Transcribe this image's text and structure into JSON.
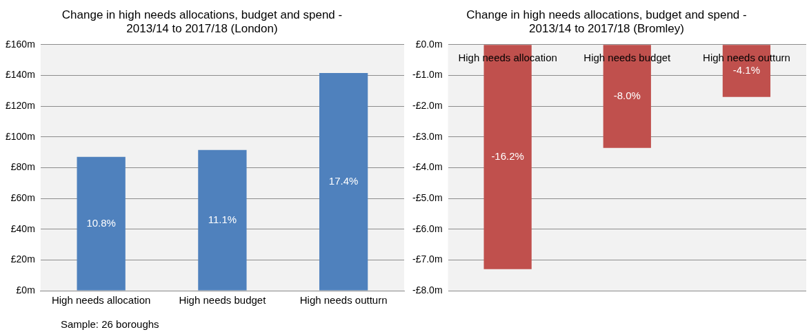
{
  "chart_data": [
    {
      "type": "bar",
      "title": "Change in high needs allocations, budget and spend - 2013/14 to 2017/18 (London)",
      "categories": [
        "High needs allocation",
        "High needs budget",
        "High needs outturn"
      ],
      "values": [
        87,
        91.5,
        141.5
      ],
      "color": "#4f81bd",
      "ylim": [
        0,
        160
      ],
      "yticks": [
        {
          "value": 0,
          "label": "£0m"
        },
        {
          "value": 20,
          "label": "£20m"
        },
        {
          "value": 40,
          "label": "£40m"
        },
        {
          "value": 60,
          "label": "£60m"
        },
        {
          "value": 80,
          "label": "£80m"
        },
        {
          "value": 100,
          "label": "£100m"
        },
        {
          "value": 120,
          "label": "£120m"
        },
        {
          "value": 140,
          "label": "£140m"
        },
        {
          "value": 160,
          "label": "£160m"
        }
      ],
      "grid": "y",
      "legend": false,
      "annotations": [
        "10.8%",
        "11.1%",
        "17.4%",
        "Sample: 26 boroughs"
      ]
    },
    {
      "type": "bar",
      "title": "Change in high needs allocations, budget and spend - 2013/14 to 2017/18 (Bromley)",
      "categories": [
        "High needs allocation",
        "High needs budget",
        "High needs outturn"
      ],
      "values": [
        -7.3,
        -3.36,
        -1.7
      ],
      "color": "#c0504d",
      "ylim": [
        -8,
        0
      ],
      "yticks": [
        {
          "value": 0,
          "label": "£0.0m"
        },
        {
          "value": -1,
          "label": "-£1.0m"
        },
        {
          "value": -2,
          "label": "-£2.0m"
        },
        {
          "value": -3,
          "label": "-£3.0m"
        },
        {
          "value": -4,
          "label": "-£4.0m"
        },
        {
          "value": -5,
          "label": "-£5.0m"
        },
        {
          "value": -6,
          "label": "-£6.0m"
        },
        {
          "value": -7,
          "label": "-£7.0m"
        },
        {
          "value": -8,
          "label": "-£8.0m"
        }
      ],
      "grid": "y",
      "legend": false,
      "annotations": [
        "-16.2%",
        "-8.0%",
        "-4.1%"
      ]
    }
  ]
}
